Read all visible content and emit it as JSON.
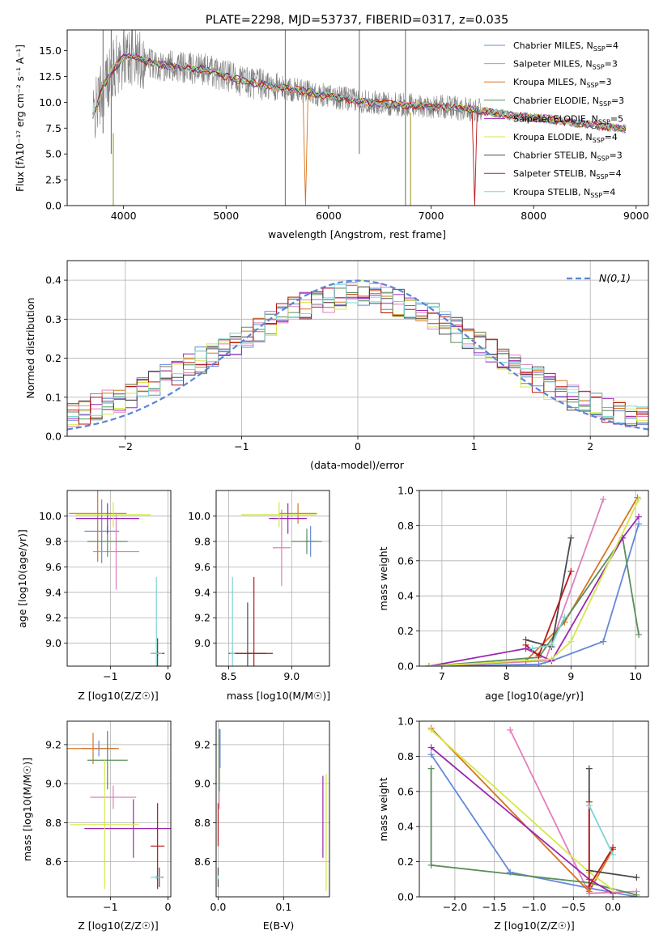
{
  "chart_data": [
    {
      "type": "line",
      "title": "PLATE=2298, MJD=53737, FIBERID=0317, z=0.035",
      "xlabel": "wavelength [Angstrom, rest frame]",
      "ylabel": "Flux [fλ10⁻¹⁷ erg cm⁻² s⁻¹ A⁻¹]",
      "xlim": [
        3450,
        9120
      ],
      "ylim": [
        0,
        17
      ],
      "xticks": [
        4000,
        5000,
        6000,
        7000,
        8000,
        9000
      ],
      "yticks": [
        0.0,
        2.5,
        5.0,
        7.5,
        10.0,
        12.5,
        15.0
      ],
      "legend_position": "top-right",
      "data_color": "#808080",
      "continuum": {
        "x": [
          3700,
          3800,
          3900,
          4000,
          4100,
          4200,
          4400,
          4600,
          4800,
          5000,
          5200,
          5400,
          5600,
          5800,
          6000,
          6200,
          6400,
          6600,
          6800,
          7000,
          7200,
          7400,
          7600,
          7800,
          8000,
          8200,
          8400,
          8600,
          8800,
          8900
        ],
        "y": [
          8.5,
          11.5,
          13.2,
          14.3,
          14.5,
          14.0,
          13.6,
          13.3,
          13.2,
          12.5,
          12.0,
          11.6,
          11.3,
          11.0,
          10.6,
          10.3,
          10.0,
          9.8,
          9.7,
          9.6,
          9.5,
          9.3,
          9.0,
          8.7,
          8.5,
          8.3,
          8.0,
          7.8,
          7.5,
          7.4
        ]
      },
      "series": [
        {
          "name": "Chabrier MILES, N_SSP=4",
          "color": "#6488da"
        },
        {
          "name": "Salpeter MILES, N_SSP=3",
          "color": "#e17fbc"
        },
        {
          "name": "Kroupa MILES, N_SSP=3",
          "color": "#d8731f"
        },
        {
          "name": "Chabrier ELODIE, N_SSP=3",
          "color": "#5a8e5a"
        },
        {
          "name": "Salpeter ELODIE, N_SSP=5",
          "color": "#9a27b0"
        },
        {
          "name": "Kroupa ELODIE, N_SSP=4",
          "color": "#d4e84a"
        },
        {
          "name": "Chabrier STELIB, N_SSP=3",
          "color": "#4b4b4b"
        },
        {
          "name": "Salpeter STELIB, N_SSP=4",
          "color": "#b81818"
        },
        {
          "name": "Kroupa STELIB, N_SSP=4",
          "color": "#7fd3d3"
        }
      ],
      "legend_entries": [
        {
          "pre": "Chabrier MILES, N",
          "sub": "SSP",
          "post": "=4"
        },
        {
          "pre": "Salpeter MILES, N",
          "sub": "SSP",
          "post": "=3"
        },
        {
          "pre": "Kroupa MILES, N",
          "sub": "SSP",
          "post": "=3"
        },
        {
          "pre": "Chabrier ELODIE, N",
          "sub": "SSP",
          "post": "=3"
        },
        {
          "pre": "Salpeter ELODIE, N",
          "sub": "SSP",
          "post": "=5"
        },
        {
          "pre": "Kroupa ELODIE, N",
          "sub": "SSP",
          "post": "=4"
        },
        {
          "pre": "Chabrier STELIB, N",
          "sub": "SSP",
          "post": "=3"
        },
        {
          "pre": "Salpeter STELIB, N",
          "sub": "SSP",
          "post": "=4"
        },
        {
          "pre": "Kroupa STELIB, N",
          "sub": "SSP",
          "post": "=4"
        }
      ]
    },
    {
      "type": "line",
      "xlabel": "(data-model)/error",
      "ylabel": "Normed distribution",
      "xlim": [
        -2.5,
        2.5
      ],
      "ylim": [
        0,
        0.45
      ],
      "xticks": [
        -2,
        -1,
        0,
        1,
        2
      ],
      "yticks": [
        0.0,
        0.1,
        0.2,
        0.3,
        0.4
      ],
      "grid": true,
      "legend_label": "N(0,1)",
      "legend_position": "top-right",
      "reference_curve": "standard normal pdf",
      "histogram_bin_width": 0.1,
      "histogram_profile": {
        "x": [
          -2.5,
          -2.0,
          -1.5,
          -1.0,
          -0.5,
          0.0,
          0.5,
          1.0,
          1.5,
          2.0,
          2.5
        ],
        "y": [
          0.05,
          0.1,
          0.17,
          0.25,
          0.33,
          0.37,
          0.33,
          0.25,
          0.15,
          0.08,
          0.04
        ]
      }
    },
    {
      "type": "scatter",
      "xlabel": "Z [log10(Z/Z☉)]",
      "ylabel": "age [log10(age/yr)]",
      "xlim": [
        -1.75,
        0.05
      ],
      "ylim": [
        8.82,
        10.2
      ],
      "xticks": [
        -1,
        0
      ],
      "yticks": [
        9.0,
        9.2,
        9.4,
        9.6,
        9.8,
        10.0
      ],
      "points": [
        {
          "x": -1.15,
          "y": 9.88,
          "xerr": 0.3,
          "yerr": 0.25,
          "color": "#6488da"
        },
        {
          "x": -0.9,
          "y": 9.72,
          "xerr": 0.4,
          "yerr": 0.3,
          "color": "#e17fbc"
        },
        {
          "x": -1.22,
          "y": 10.02,
          "xerr": 0.5,
          "yerr": 0.38,
          "color": "#d8731f"
        },
        {
          "x": -1.05,
          "y": 9.8,
          "xerr": 0.35,
          "yerr": 0.12,
          "color": "#5a8e5a"
        },
        {
          "x": -1.05,
          "y": 9.98,
          "xerr": 0.55,
          "yerr": 0.12,
          "color": "#9a27b0"
        },
        {
          "x": -0.95,
          "y": 10.01,
          "xerr": 0.65,
          "yerr": 0.1,
          "color": "#d4e84a"
        },
        {
          "x": -0.18,
          "y": 8.92,
          "xerr": 0.05,
          "yerr": 0.12,
          "color": "#4b4b4b"
        },
        {
          "x": -0.18,
          "y": 8.92,
          "xerr": 0.12,
          "yerr": 0.02,
          "color": "#b81818"
        },
        {
          "x": -0.2,
          "y": 8.92,
          "xerr": 0.1,
          "yerr": 0.6,
          "color": "#7fd3d3"
        }
      ]
    },
    {
      "type": "scatter",
      "xlabel": "mass [log10(M/M☉)]",
      "xlim": [
        8.4,
        9.3
      ],
      "ylim": [
        8.82,
        10.2
      ],
      "xticks": [
        8.5,
        9.0
      ],
      "yticks": [
        9.0,
        9.2,
        9.4,
        9.6,
        9.8,
        10.0
      ],
      "points": [
        {
          "x": 9.15,
          "y": 9.8,
          "xerr": 0.05,
          "yerr": 0.12,
          "color": "#6488da"
        },
        {
          "x": 8.92,
          "y": 9.75,
          "xerr": 0.07,
          "yerr": 0.3,
          "color": "#e17fbc"
        },
        {
          "x": 9.05,
          "y": 10.02,
          "xerr": 0.15,
          "yerr": 0.08,
          "color": "#d8731f"
        },
        {
          "x": 9.12,
          "y": 9.8,
          "xerr": 0.12,
          "yerr": 0.1,
          "color": "#5a8e5a"
        },
        {
          "x": 8.97,
          "y": 9.98,
          "xerr": 0.15,
          "yerr": 0.12,
          "color": "#9a27b0"
        },
        {
          "x": 8.9,
          "y": 10.01,
          "xerr": 0.3,
          "yerr": 0.1,
          "color": "#d4e84a"
        },
        {
          "x": 8.65,
          "y": 8.92,
          "xerr": 0.15,
          "yerr": 0.4,
          "color": "#4b4b4b"
        },
        {
          "x": 8.7,
          "y": 8.92,
          "xerr": 0.15,
          "yerr": 0.6,
          "color": "#b81818"
        },
        {
          "x": 8.53,
          "y": 8.92,
          "xerr": 0.02,
          "yerr": 0.6,
          "color": "#7fd3d3"
        }
      ]
    },
    {
      "type": "line",
      "xlabel": "age [log10(age/yr)]",
      "ylabel": "mass weight",
      "xlim": [
        6.65,
        10.2
      ],
      "ylim": [
        0,
        1
      ],
      "xticks": [
        7,
        8,
        9,
        10
      ],
      "yticks": [
        0.0,
        0.2,
        0.4,
        0.6,
        0.8,
        1.0
      ],
      "grid": true,
      "series": [
        {
          "color": "#6488da",
          "x": [
            6.8,
            8.5,
            8.7,
            9.5,
            10.05
          ],
          "y": [
            0.0,
            0.01,
            0.03,
            0.14,
            0.81
          ]
        },
        {
          "color": "#e17fbc",
          "x": [
            6.8,
            8.6,
            9.5
          ],
          "y": [
            0.0,
            0.03,
            0.95
          ]
        },
        {
          "color": "#d8731f",
          "x": [
            6.8,
            8.3,
            8.9,
            10.03
          ],
          "y": [
            0.0,
            0.03,
            0.25,
            0.96
          ]
        },
        {
          "color": "#5a8e5a",
          "x": [
            6.8,
            8.5,
            9.8,
            10.05
          ],
          "y": [
            0.0,
            0.05,
            0.73,
            0.18
          ]
        },
        {
          "color": "#9a27b0",
          "x": [
            6.8,
            8.3,
            8.7,
            9.8,
            10.05
          ],
          "y": [
            0.0,
            0.1,
            0.03,
            0.73,
            0.85
          ]
        },
        {
          "color": "#d4e84a",
          "x": [
            6.8,
            8.7,
            9.0,
            10.05
          ],
          "y": [
            0.0,
            0.04,
            0.14,
            0.95
          ]
        },
        {
          "color": "#4b4b4b",
          "x": [
            8.3,
            8.7,
            9.0
          ],
          "y": [
            0.15,
            0.11,
            0.73
          ]
        },
        {
          "color": "#b81818",
          "x": [
            8.3,
            8.5,
            9.0
          ],
          "y": [
            0.12,
            0.06,
            0.54
          ]
        },
        {
          "color": "#7fd3d3",
          "x": [
            8.4,
            8.7,
            8.9
          ],
          "y": [
            0.1,
            0.12,
            0.28
          ]
        }
      ]
    },
    {
      "type": "scatter",
      "xlabel": "Z [log10(Z/Z☉)]",
      "ylabel": "mass [log10(M/M☉)]",
      "xlim": [
        -1.75,
        0.05
      ],
      "ylim": [
        8.42,
        9.32
      ],
      "xticks": [
        -1,
        0
      ],
      "yticks": [
        8.6,
        8.8,
        9.0,
        9.2
      ],
      "points": [
        {
          "x": -1.2,
          "y": 9.18,
          "xerr": 0.3,
          "yerr": 0.04,
          "color": "#6488da"
        },
        {
          "x": -0.95,
          "y": 8.93,
          "xerr": 0.4,
          "yerr": 0.06,
          "color": "#e17fbc"
        },
        {
          "x": -1.3,
          "y": 9.18,
          "xerr": 0.45,
          "yerr": 0.08,
          "color": "#d8731f"
        },
        {
          "x": -1.05,
          "y": 9.12,
          "xerr": 0.35,
          "yerr": 0.15,
          "color": "#5a8e5a"
        },
        {
          "x": -0.6,
          "y": 8.77,
          "xerr": 0.85,
          "yerr": 0.15,
          "color": "#9a27b0"
        },
        {
          "x": -1.1,
          "y": 8.79,
          "xerr": 0.6,
          "yerr": 0.33,
          "color": "#d4e84a"
        },
        {
          "x": -0.15,
          "y": 8.52,
          "xerr": 0.07,
          "yerr": 0.05,
          "color": "#4b4b4b"
        },
        {
          "x": -0.18,
          "y": 8.68,
          "xerr": 0.12,
          "yerr": 0.22,
          "color": "#b81818"
        },
        {
          "x": -0.2,
          "y": 8.52,
          "xerr": 0.1,
          "yerr": 0.01,
          "color": "#7fd3d3"
        }
      ]
    },
    {
      "type": "scatter",
      "xlabel": "E(B-V)",
      "xlim": [
        -0.003,
        0.17
      ],
      "ylim": [
        8.42,
        9.32
      ],
      "xticks": [
        0.0,
        0.1
      ],
      "yticks": [
        8.6,
        8.8,
        9.0,
        9.2
      ],
      "points": [
        {
          "x": 0.003,
          "y": 9.18,
          "yerr": 0.1,
          "color": "#6488da"
        },
        {
          "x": 0.002,
          "y": 8.93,
          "yerr": 0.06,
          "color": "#e17fbc"
        },
        {
          "x": 0.002,
          "y": 9.12,
          "yerr": 0.12,
          "color": "#d8731f"
        },
        {
          "x": 0.002,
          "y": 9.12,
          "yerr": 0.16,
          "color": "#5a8e5a"
        },
        {
          "x": 0.16,
          "y": 8.83,
          "yerr": 0.21,
          "color": "#9a27b0"
        },
        {
          "x": 0.165,
          "y": 8.75,
          "yerr": 0.3,
          "color": "#d4e84a"
        },
        {
          "x": 0.0,
          "y": 8.52,
          "yerr": 0.05,
          "color": "#4b4b4b"
        },
        {
          "x": 0.0,
          "y": 8.79,
          "yerr": 0.11,
          "color": "#b81818"
        },
        {
          "x": 0.0,
          "y": 8.52,
          "yerr": 0.01,
          "color": "#7fd3d3"
        }
      ]
    },
    {
      "type": "line",
      "xlabel": "Z [log10(Z/Z☉)]",
      "ylabel": "mass weight",
      "xlim": [
        -2.45,
        0.45
      ],
      "ylim": [
        0,
        1
      ],
      "xticks": [
        -2.0,
        -1.5,
        -1.0,
        -0.5,
        0.0
      ],
      "yticks": [
        0.0,
        0.2,
        0.4,
        0.6,
        0.8,
        1.0
      ],
      "grid": true,
      "series": [
        {
          "color": "#6488da",
          "x": [
            -2.3,
            -1.3,
            -0.3,
            0.3
          ],
          "y": [
            0.81,
            0.14,
            0.05,
            0.0
          ]
        },
        {
          "color": "#e17fbc",
          "x": [
            -1.3,
            -0.3,
            0.3
          ],
          "y": [
            0.95,
            0.02,
            0.03
          ]
        },
        {
          "color": "#d8731f",
          "x": [
            -2.3,
            -0.3,
            0.0
          ],
          "y": [
            0.96,
            0.03,
            0.27
          ]
        },
        {
          "color": "#5a8e5a",
          "x": [
            -2.3,
            -2.3,
            -0.3,
            0.3
          ],
          "y": [
            0.73,
            0.18,
            0.08,
            0.01
          ]
        },
        {
          "color": "#9a27b0",
          "x": [
            -2.3,
            -0.3,
            0.0
          ],
          "y": [
            0.85,
            0.1,
            0.02
          ]
        },
        {
          "color": "#d4e84a",
          "x": [
            -2.3,
            -0.3,
            0.0
          ],
          "y": [
            0.95,
            0.14,
            0.04
          ]
        },
        {
          "color": "#4b4b4b",
          "x": [
            -0.3,
            -0.3,
            0.3
          ],
          "y": [
            0.73,
            0.15,
            0.11
          ]
        },
        {
          "color": "#b81818",
          "x": [
            -0.3,
            -0.3,
            0.0
          ],
          "y": [
            0.54,
            0.06,
            0.28
          ]
        },
        {
          "color": "#7fd3d3",
          "x": [
            -0.3,
            0.0
          ],
          "y": [
            0.52,
            0.24
          ]
        }
      ]
    }
  ]
}
